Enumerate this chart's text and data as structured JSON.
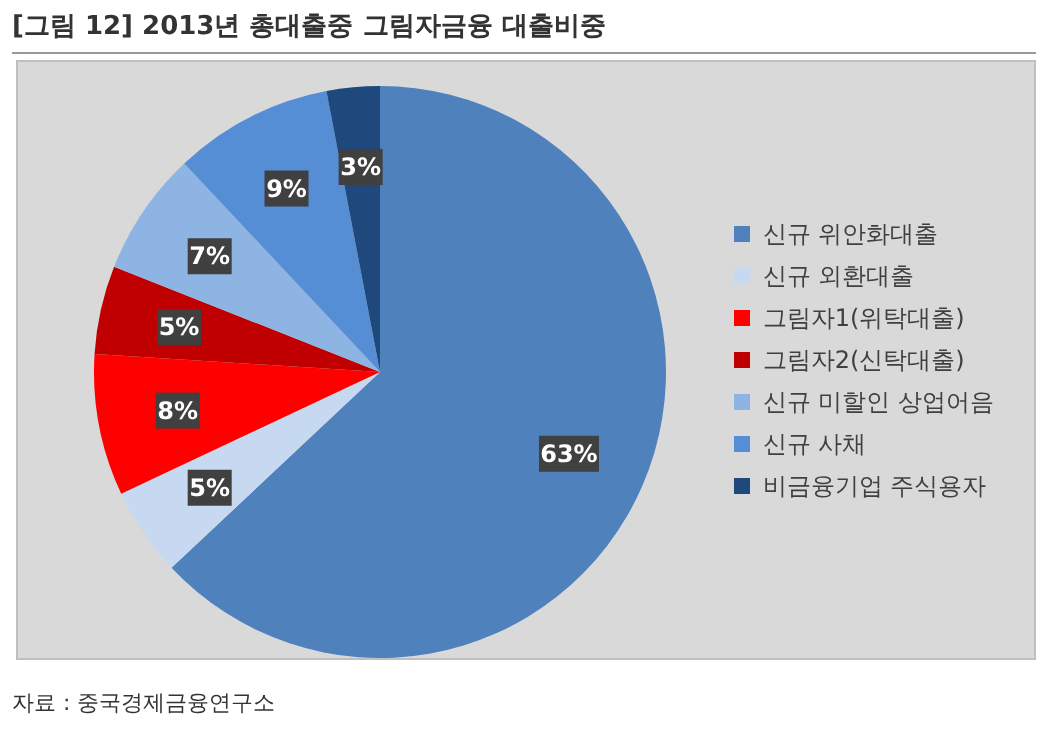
{
  "chart_data": {
    "type": "pie",
    "title": "[그림 12] 2013년 총대출중 그림자금융 대출비중",
    "categories": [
      "신규 위안화대출",
      "신규 외환대출",
      "그림자1(위탁대출)",
      "그림자2(신탁대출)",
      "신규 미할인 상업어음",
      "신규 사채",
      "비금융기업 주식용자"
    ],
    "values": [
      63,
      5,
      8,
      5,
      7,
      9,
      3
    ],
    "colors": [
      "#4f81bd",
      "#c6d9f1",
      "#ff0000",
      "#c00000",
      "#8eb4e3",
      "#558ed5",
      "#1f497d"
    ],
    "value_labels": [
      "63%",
      "5%",
      "8%",
      "5%",
      "7%",
      "9%",
      "3%"
    ],
    "legend": "right",
    "annotations": [
      "자료 : 중국경제금융연구소"
    ]
  }
}
